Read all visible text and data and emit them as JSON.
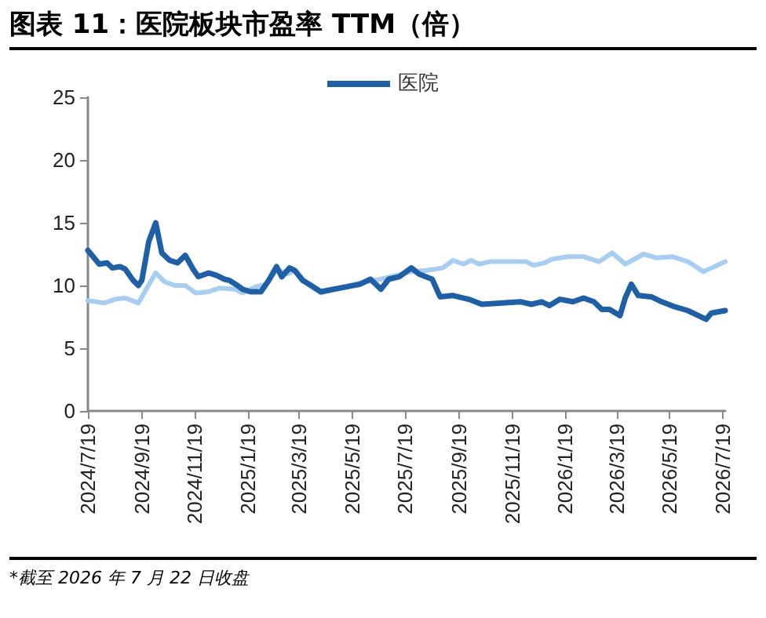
{
  "chart_data": {
    "type": "line",
    "title": "图表 11：医院板块市盈率 TTM（倍）",
    "annotations": [
      "*截至 2026 年 7 月 22 日收盘"
    ],
    "xlim": [
      "2024-07-19",
      "2026-07-22"
    ],
    "xticks": [
      {
        "value": "2024-07-19",
        "label": "2024/7/19"
      },
      {
        "value": "2024-09-19",
        "label": "2024/9/19"
      },
      {
        "value": "2024-11-19",
        "label": "2024/11/19"
      },
      {
        "value": "2025-01-19",
        "label": "2025/1/19"
      },
      {
        "value": "2025-03-19",
        "label": "2025/3/19"
      },
      {
        "value": "2025-05-19",
        "label": "2025/5/19"
      },
      {
        "value": "2025-07-19",
        "label": "2025/7/19"
      },
      {
        "value": "2025-09-19",
        "label": "2025/9/19"
      },
      {
        "value": "2025-11-19",
        "label": "2025/11/19"
      },
      {
        "value": "2026-01-19",
        "label": "2026/1/19"
      },
      {
        "value": "2026-03-19",
        "label": "2026/3/19"
      },
      {
        "value": "2026-05-19",
        "label": "2026/5/19"
      },
      {
        "value": "2026-07-19",
        "label": "2026/7/19"
      }
    ],
    "ylim": [
      0,
      25
    ],
    "yticks": [
      0,
      5,
      10,
      15,
      20,
      25
    ],
    "grid": false,
    "legend": "top",
    "marker": "none",
    "line_style": "solid",
    "series": [
      {
        "name": "医院",
        "color": "#1f5fa6",
        "x": [
          "2024-07-19",
          "2024-08-01",
          "2024-08-10",
          "2024-08-16",
          "2024-08-25",
          "2024-08-31",
          "2024-09-09",
          "2024-09-15",
          "2024-09-19",
          "2024-09-27",
          "2024-10-05",
          "2024-10-12",
          "2024-10-21",
          "2024-10-30",
          "2024-11-08",
          "2024-11-17",
          "2024-11-23",
          "2024-12-05",
          "2024-12-14",
          "2024-12-23",
          "2024-12-29",
          "2025-01-07",
          "2025-01-13",
          "2025-01-22",
          "2025-02-03",
          "2025-02-12",
          "2025-02-21",
          "2025-02-27",
          "2025-03-08",
          "2025-03-14",
          "2025-03-23",
          "2025-04-04",
          "2025-04-13",
          "2025-04-28",
          "2025-05-13",
          "2025-05-28",
          "2025-06-09",
          "2025-06-21",
          "2025-06-30",
          "2025-07-12",
          "2025-07-26",
          "2025-08-04",
          "2025-08-19",
          "2025-08-28",
          "2025-09-12",
          "2025-09-30",
          "2025-10-15",
          "2025-11-05",
          "2025-11-29",
          "2025-12-11",
          "2025-12-23",
          "2026-01-01",
          "2026-01-13",
          "2026-01-28",
          "2026-02-09",
          "2026-02-21",
          "2026-03-02",
          "2026-03-11",
          "2026-03-23",
          "2026-03-29",
          "2026-04-05",
          "2026-04-13",
          "2026-04-28",
          "2026-05-10",
          "2026-05-25",
          "2026-06-09",
          "2026-06-21",
          "2026-06-30",
          "2026-07-06",
          "2026-07-22"
        ],
        "values": [
          12.8,
          11.7,
          11.8,
          11.4,
          11.5,
          11.3,
          10.4,
          10.0,
          10.4,
          13.5,
          15.0,
          12.6,
          12.0,
          11.8,
          12.4,
          11.3,
          10.7,
          11.0,
          10.8,
          10.5,
          10.4,
          10.0,
          9.7,
          9.5,
          9.5,
          10.4,
          11.5,
          10.7,
          11.4,
          11.2,
          10.4,
          9.9,
          9.5,
          9.7,
          9.9,
          10.1,
          10.5,
          9.7,
          10.5,
          10.7,
          11.4,
          10.9,
          10.5,
          9.1,
          9.2,
          8.9,
          8.5,
          8.6,
          8.7,
          8.5,
          8.7,
          8.4,
          8.9,
          8.7,
          9.0,
          8.7,
          8.1,
          8.1,
          7.6,
          9.0,
          10.1,
          9.2,
          9.1,
          8.7,
          8.3,
          8.0,
          7.6,
          7.3,
          7.8,
          8.0
        ]
      },
      {
        "color": "#a9cdf0",
        "x": [
          "2024-07-19",
          "2024-08-07",
          "2024-08-19",
          "2024-08-31",
          "2024-09-15",
          "2024-09-24",
          "2024-10-05",
          "2024-10-15",
          "2024-10-27",
          "2024-11-08",
          "2024-11-20",
          "2024-12-05",
          "2024-12-17",
          "2025-01-04",
          "2025-01-13",
          "2025-01-28",
          "2025-02-09",
          "2025-02-21",
          "2025-03-05",
          "2025-03-14",
          "2025-03-29",
          "2025-04-13",
          "2025-04-28",
          "2025-05-16",
          "2025-06-03",
          "2025-06-21",
          "2025-07-09",
          "2025-07-26",
          "2025-08-13",
          "2025-08-31",
          "2025-09-12",
          "2025-09-24",
          "2025-10-03",
          "2025-10-12",
          "2025-10-24",
          "2025-11-17",
          "2025-12-05",
          "2025-12-14",
          "2025-12-26",
          "2026-01-04",
          "2026-01-22",
          "2026-02-09",
          "2026-02-27",
          "2026-03-14",
          "2026-03-29",
          "2026-04-19",
          "2026-05-04",
          "2026-05-22",
          "2026-06-09",
          "2026-06-27",
          "2026-07-22"
        ],
        "values": [
          8.8,
          8.6,
          8.9,
          9.0,
          8.6,
          9.7,
          11.0,
          10.3,
          10.0,
          10.0,
          9.4,
          9.5,
          9.8,
          9.7,
          9.4,
          9.9,
          10.1,
          11.3,
          10.9,
          11.2,
          10.1,
          9.4,
          9.7,
          10.0,
          10.3,
          10.5,
          10.8,
          11.1,
          11.2,
          11.4,
          12.0,
          11.7,
          12.0,
          11.7,
          11.9,
          11.9,
          11.9,
          11.6,
          11.8,
          12.1,
          12.3,
          12.3,
          11.9,
          12.6,
          11.7,
          12.5,
          12.2,
          12.3,
          11.9,
          11.1,
          11.9
        ]
      }
    ]
  }
}
